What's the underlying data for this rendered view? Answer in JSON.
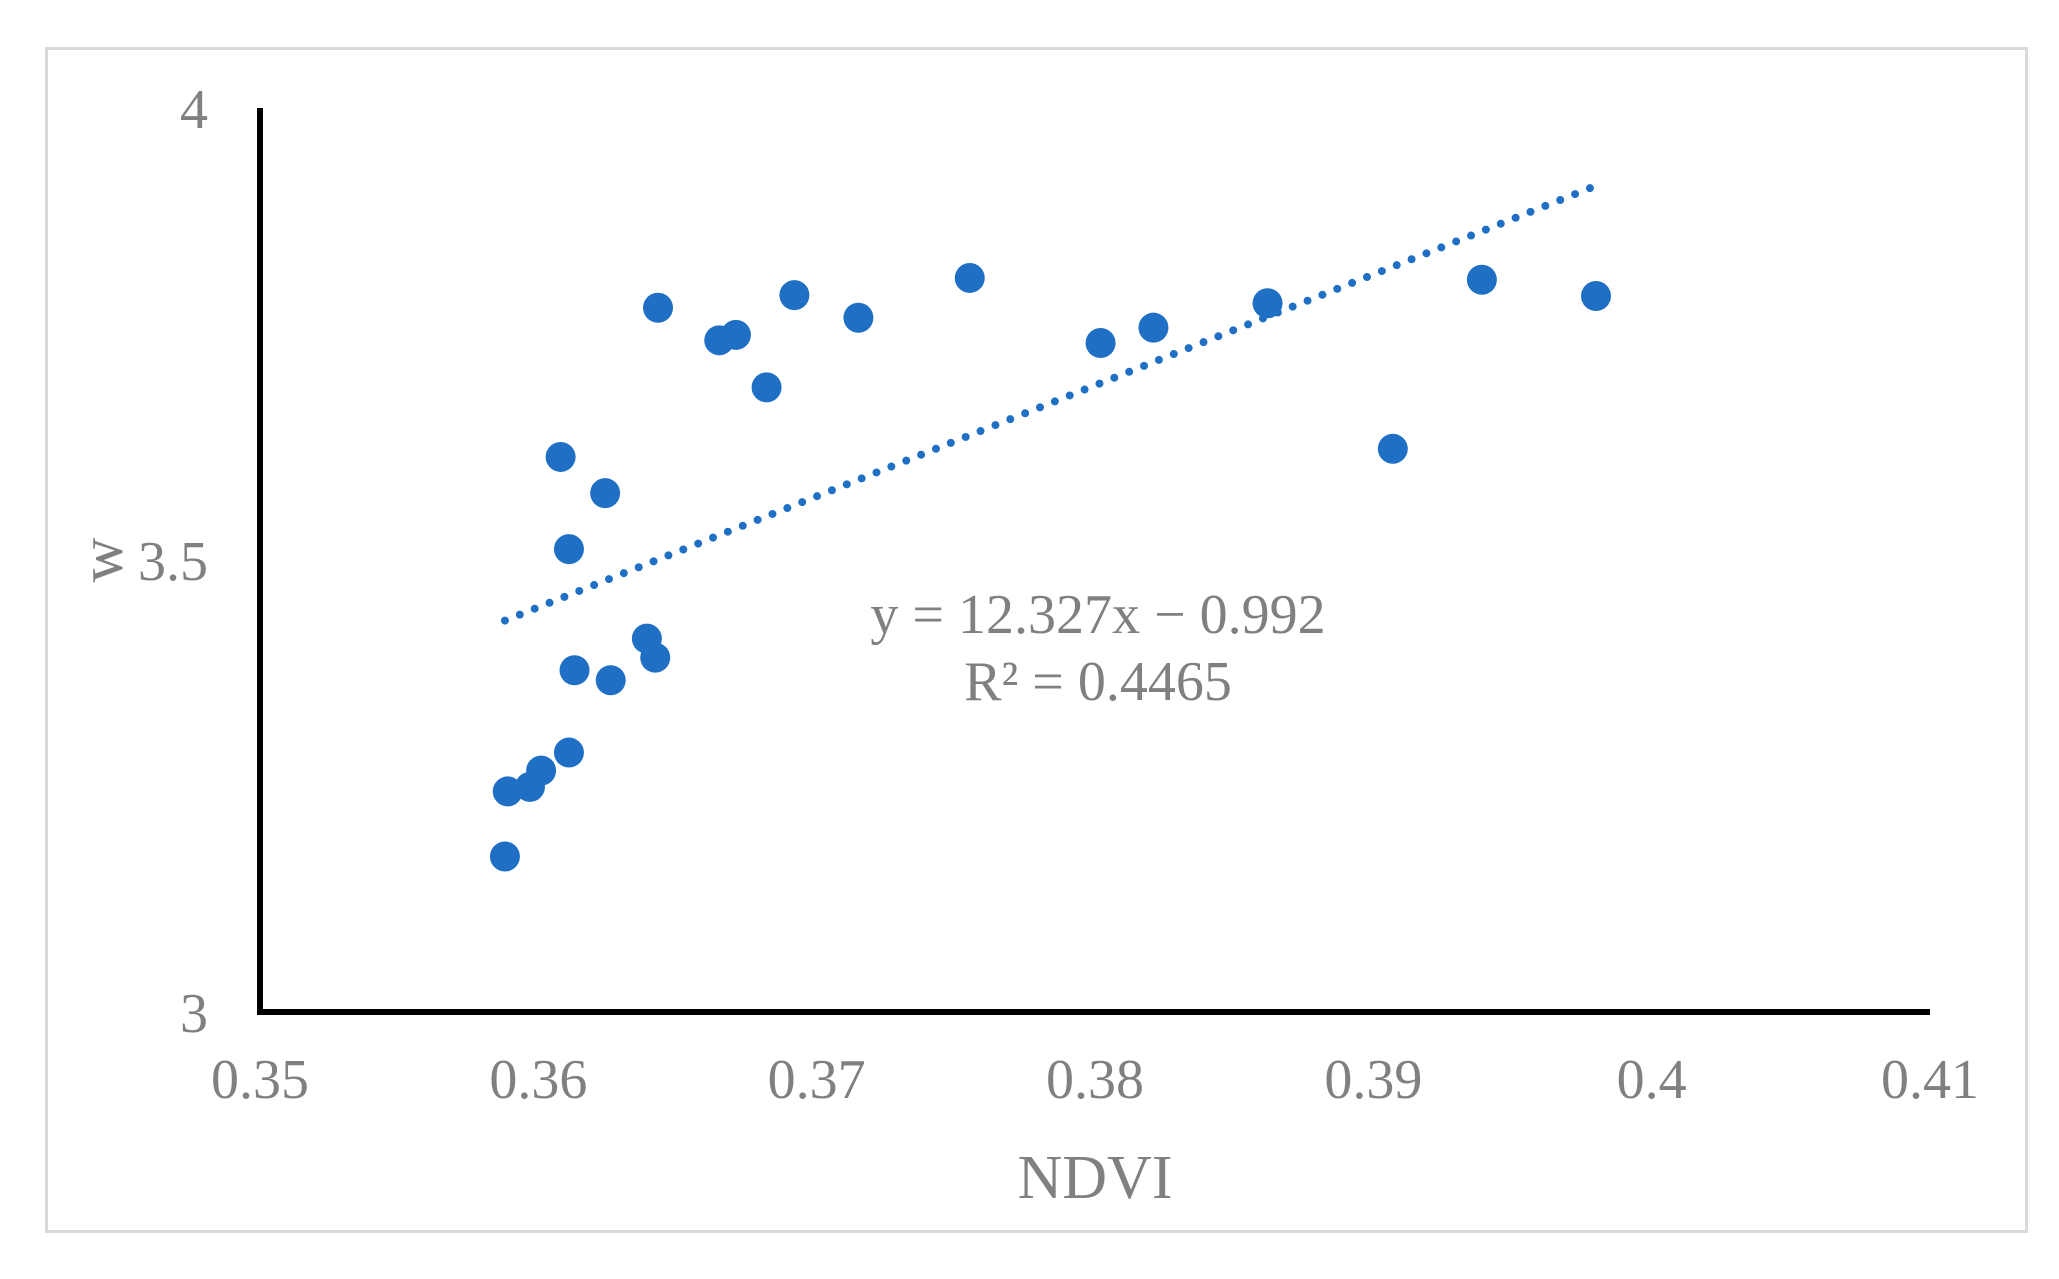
{
  "chart_data": {
    "type": "scatter",
    "title": "",
    "xlabel": "NDVI",
    "ylabel": "w",
    "xlim": [
      0.35,
      0.41
    ],
    "ylim": [
      3,
      4
    ],
    "x_ticks": [
      0.35,
      0.36,
      0.37,
      0.38,
      0.39,
      0.4,
      0.41
    ],
    "x_tick_labels": [
      "0.35",
      "0.36",
      "0.37",
      "0.38",
      "0.39",
      "0.4",
      "0.41"
    ],
    "y_ticks": [
      3,
      3.5,
      4
    ],
    "y_tick_labels": [
      "3",
      "3.5",
      "4"
    ],
    "grid": false,
    "legend": "none",
    "marker_color": "#1f6fc5",
    "series": [
      {
        "x": [
          0.3588,
          0.3589,
          0.3597,
          0.3601,
          0.3611,
          0.3608,
          0.3611,
          0.3613,
          0.3624,
          0.3626,
          0.3639,
          0.3642,
          0.3643,
          0.3665,
          0.3671,
          0.3682,
          0.3692,
          0.3715,
          0.3755,
          0.3802,
          0.3821,
          0.3862,
          0.3907,
          0.3939,
          0.398
        ],
        "y": [
          3.172,
          3.244,
          3.249,
          3.267,
          3.287,
          3.614,
          3.512,
          3.378,
          3.574,
          3.367,
          3.413,
          3.392,
          3.779,
          3.743,
          3.749,
          3.691,
          3.793,
          3.768,
          3.812,
          3.74,
          3.757,
          3.784,
          3.623,
          3.81,
          3.792
        ]
      }
    ],
    "trendline": {
      "type": "linear",
      "style": "dotted",
      "color": "#1f6fc5",
      "x_range": [
        0.3588,
        0.398
      ],
      "y_range": [
        3.433,
        3.914
      ]
    },
    "annotations": {
      "equation": "y = 12.327x − 0.992",
      "r_squared": "R² = 0.4465"
    }
  }
}
